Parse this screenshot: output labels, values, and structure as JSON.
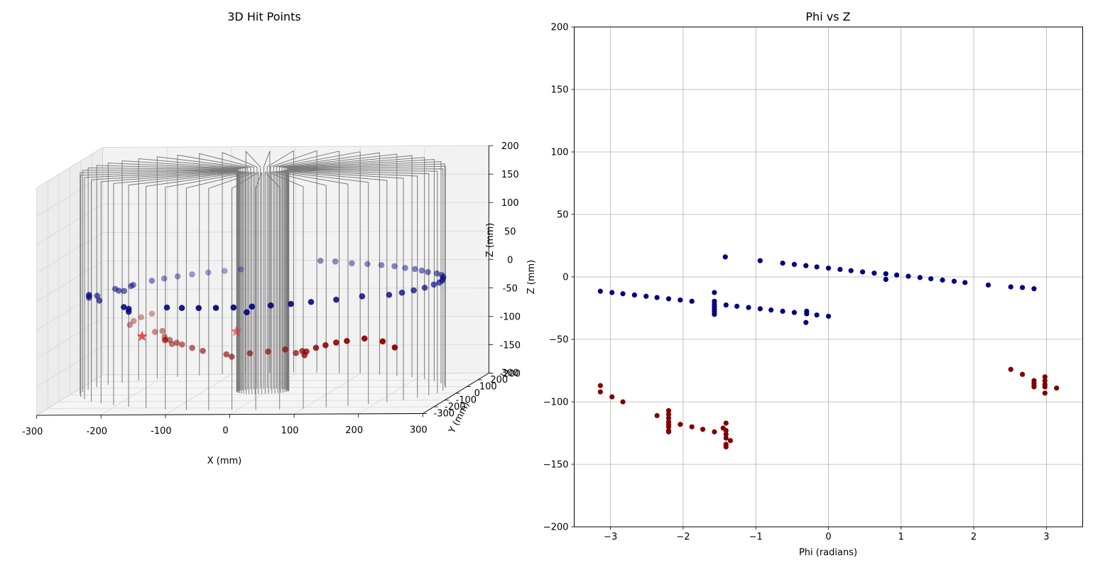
{
  "chart_data": [
    {
      "type": "scatter",
      "projection": "3d",
      "title": "3D Hit Points",
      "xlabel": "X (mm)",
      "ylabel": "Y (mm)",
      "zlabel": "Z (mm)",
      "xlim": [
        -300,
        300
      ],
      "ylim": [
        -300,
        300
      ],
      "zlim": [
        -200,
        200
      ],
      "xticks": [
        "-300",
        "-200",
        "-100",
        "0",
        "100",
        "200",
        "300"
      ],
      "yticks": [
        "-300",
        "-200",
        "-100",
        "0",
        "100",
        "200",
        "300"
      ],
      "zticks": [
        "-200",
        "-150",
        "-100",
        "-50",
        "0",
        "50",
        "100",
        "150",
        "200"
      ],
      "grid": true,
      "detector": "concentric vertical layers with radial wire planes",
      "colors": {
        "track_upper": "#0a0a80",
        "track_lower": "#8b0000",
        "vertex_marker": "#e8303a",
        "wire": "#808080"
      },
      "series": [
        {
          "color": "#0a0a80",
          "points": [
            [
              -80,
              269,
              -12
            ],
            [
              -103,
              256,
              -13
            ],
            [
              -126,
              241,
              -14
            ],
            [
              -148,
              223,
              -15
            ],
            [
              -167,
              203,
              -16
            ],
            [
              -184,
              180,
              -17
            ],
            [
              -199,
              156,
              -18
            ],
            [
              -219,
              103,
              -19
            ],
            [
              -221,
              95,
              -20
            ],
            [
              -240,
              62,
              -21
            ],
            [
              -231,
              43,
              -22
            ],
            [
              -225,
              56,
              -24
            ],
            [
              -270,
              0,
              -29
            ],
            [
              -270,
              0,
              -26
            ],
            [
              -270,
              0,
              -24
            ],
            [
              -175,
              -195,
              -26
            ],
            [
              -175,
              -195,
              -31
            ],
            [
              -248,
              -35,
              -30
            ],
            [
              -259,
              10,
              -27
            ],
            [
              -180,
              -210,
              -21
            ],
            [
              62,
              162,
              15
            ],
            [
              84,
              168,
              13
            ],
            [
              110,
              166,
              10
            ],
            [
              135,
              162,
              9
            ],
            [
              158,
              154,
              8
            ],
            [
              180,
              145,
              7
            ],
            [
              198,
              136,
              5
            ],
            [
              215,
              126,
              4
            ],
            [
              228,
              112,
              3
            ],
            [
              240,
              97,
              2
            ],
            [
              256,
              85,
              1
            ],
            [
              266,
              70,
              0
            ],
            [
              272,
              50,
              -1
            ],
            [
              275,
              30,
              -2
            ],
            [
              277,
              10,
              -3
            ],
            [
              276,
              -10,
              -4
            ],
            [
              271,
              -30,
              -5
            ],
            [
              262,
              -60,
              -7
            ],
            [
              250,
              -90,
              -8
            ],
            [
              236,
              -115,
              -9
            ],
            [
              220,
              -138,
              -10
            ],
            [
              183,
              -167,
              -9
            ],
            [
              148,
              -198,
              -11
            ],
            [
              113,
              -222,
              -12
            ],
            [
              85,
              -242,
              -13
            ],
            [
              56,
              -255,
              -14
            ],
            [
              28,
              -262,
              -15
            ],
            [
              0,
              -266,
              -16
            ],
            [
              -28,
              -262,
              -17
            ],
            [
              -56,
              -255,
              -18
            ],
            [
              -84,
              -244,
              -19
            ],
            [
              -110,
              -228,
              -20
            ],
            [
              20,
              -262,
              -25
            ]
          ]
        },
        {
          "color": "#8b0000",
          "points": [
            [
              -215,
              250,
              -87
            ],
            [
              -230,
              240,
              -92
            ],
            [
              -238,
              218,
              -96
            ],
            [
              -240,
              195,
              -100
            ],
            [
              -200,
              190,
              -112
            ],
            [
              -185,
              170,
              -108
            ],
            [
              -180,
              160,
              -117
            ],
            [
              -178,
              150,
              -122
            ],
            [
              -175,
              140,
              -120
            ],
            [
              -165,
              120,
              -118
            ],
            [
              -160,
              110,
              -124
            ],
            [
              -150,
              95,
              -120
            ],
            [
              -140,
              85,
              -122
            ],
            [
              -120,
              60,
              -125
            ],
            [
              -100,
              40,
              -128
            ],
            [
              -60,
              20,
              -132
            ],
            [
              -50,
              10,
              -135
            ],
            [
              -20,
              0,
              -128
            ],
            [
              10,
              -10,
              -124
            ],
            [
              40,
              -30,
              -118
            ],
            [
              60,
              -50,
              -122
            ],
            [
              75,
              -80,
              -115
            ],
            [
              82,
              -100,
              -120
            ],
            [
              90,
              -130,
              -110
            ],
            [
              110,
              -160,
              -100
            ],
            [
              130,
              -190,
              -92
            ],
            [
              150,
              -210,
              -85
            ],
            [
              170,
              -230,
              -80
            ],
            [
              200,
              -245,
              -74
            ],
            [
              230,
              -255,
              -78
            ],
            [
              250,
              -262,
              -88
            ]
          ]
        },
        {
          "color": "#e8303a",
          "marker": "star",
          "points": [
            [
              -155,
              -190,
              -75
            ],
            [
              -42,
              5,
              -90
            ]
          ]
        }
      ]
    },
    {
      "type": "scatter",
      "title": "Phi vs Z",
      "xlabel": "Phi (radians)",
      "ylabel": "Z (mm)",
      "xlim": [
        -3.5,
        3.5
      ],
      "ylim": [
        -200,
        200
      ],
      "xticks": [
        "−3",
        "−2",
        "−1",
        "0",
        "1",
        "2",
        "3"
      ],
      "yticks": [
        "−200",
        "−150",
        "−100",
        "−50",
        "0",
        "50",
        "100",
        "150",
        "200"
      ],
      "grid": true,
      "series": [
        {
          "color": "#00007f",
          "points": [
            [
              -1.42,
              16
            ],
            [
              -0.94,
              13
            ],
            [
              -0.63,
              11
            ],
            [
              -0.47,
              10
            ],
            [
              -0.31,
              9
            ],
            [
              -0.16,
              8
            ],
            [
              0.0,
              7
            ],
            [
              0.16,
              6
            ],
            [
              0.31,
              5
            ],
            [
              0.47,
              4
            ],
            [
              0.63,
              3
            ],
            [
              0.79,
              2.5
            ],
            [
              0.79,
              -2
            ],
            [
              0.94,
              1.5
            ],
            [
              1.1,
              0.5
            ],
            [
              1.26,
              -0.5
            ],
            [
              1.41,
              -1.5
            ],
            [
              1.57,
              -2.5
            ],
            [
              1.73,
              -3.5
            ],
            [
              1.88,
              -4.5
            ],
            [
              2.2,
              -6.5
            ],
            [
              2.51,
              -8
            ],
            [
              2.67,
              -8.5
            ],
            [
              2.83,
              -9.5
            ],
            [
              -3.14,
              -11.5
            ],
            [
              -2.98,
              -12.5
            ],
            [
              -2.83,
              -13.5
            ],
            [
              -2.67,
              -14.5
            ],
            [
              -2.51,
              -15.5
            ],
            [
              -2.36,
              -16.5
            ],
            [
              -2.2,
              -17.5
            ],
            [
              -2.04,
              -18.5
            ],
            [
              -1.88,
              -19.5
            ],
            [
              -1.57,
              -12.5
            ],
            [
              -1.57,
              -19.5
            ],
            [
              -1.57,
              -22
            ],
            [
              -1.57,
              -24
            ],
            [
              -1.57,
              -26
            ],
            [
              -1.57,
              -28
            ],
            [
              -1.57,
              -30
            ],
            [
              -1.41,
              -22.5
            ],
            [
              -1.26,
              -23.5
            ],
            [
              -1.1,
              -24.5
            ],
            [
              -0.94,
              -25.5
            ],
            [
              -0.79,
              -26.5
            ],
            [
              -0.63,
              -27.5
            ],
            [
              -0.47,
              -28.5
            ],
            [
              -0.3,
              -29.5
            ],
            [
              -0.3,
              -27.5
            ],
            [
              -0.16,
              -30.5
            ],
            [
              0.0,
              -31.5
            ],
            [
              -0.31,
              -36.5
            ]
          ]
        },
        {
          "color": "#7f0000",
          "points": [
            [
              -3.14,
              -87
            ],
            [
              -3.14,
              -92
            ],
            [
              -2.98,
              -96
            ],
            [
              -2.83,
              -100
            ],
            [
              -2.36,
              -111
            ],
            [
              -2.2,
              -107
            ],
            [
              -2.2,
              -110
            ],
            [
              -2.2,
              -113
            ],
            [
              -2.2,
              -116
            ],
            [
              -2.2,
              -118
            ],
            [
              -2.2,
              -120
            ],
            [
              -2.2,
              -123
            ],
            [
              -2.2,
              -124
            ],
            [
              -2.04,
              -118
            ],
            [
              -1.88,
              -120
            ],
            [
              -1.73,
              -122
            ],
            [
              -1.57,
              -124
            ],
            [
              -1.45,
              -121
            ],
            [
              -1.41,
              -117
            ],
            [
              -1.41,
              -123
            ],
            [
              -1.41,
              -126
            ],
            [
              -1.41,
              -129
            ],
            [
              -1.41,
              -134
            ],
            [
              -1.41,
              -136
            ],
            [
              -1.35,
              -131
            ],
            [
              2.51,
              -74
            ],
            [
              2.67,
              -78
            ],
            [
              2.83,
              -83
            ],
            [
              2.83,
              -85
            ],
            [
              2.83,
              -87
            ],
            [
              2.83,
              -88
            ],
            [
              2.98,
              -80
            ],
            [
              2.98,
              -83
            ],
            [
              2.98,
              -86
            ],
            [
              2.98,
              -88
            ],
            [
              2.98,
              -93
            ],
            [
              3.14,
              -89
            ]
          ]
        }
      ]
    }
  ]
}
